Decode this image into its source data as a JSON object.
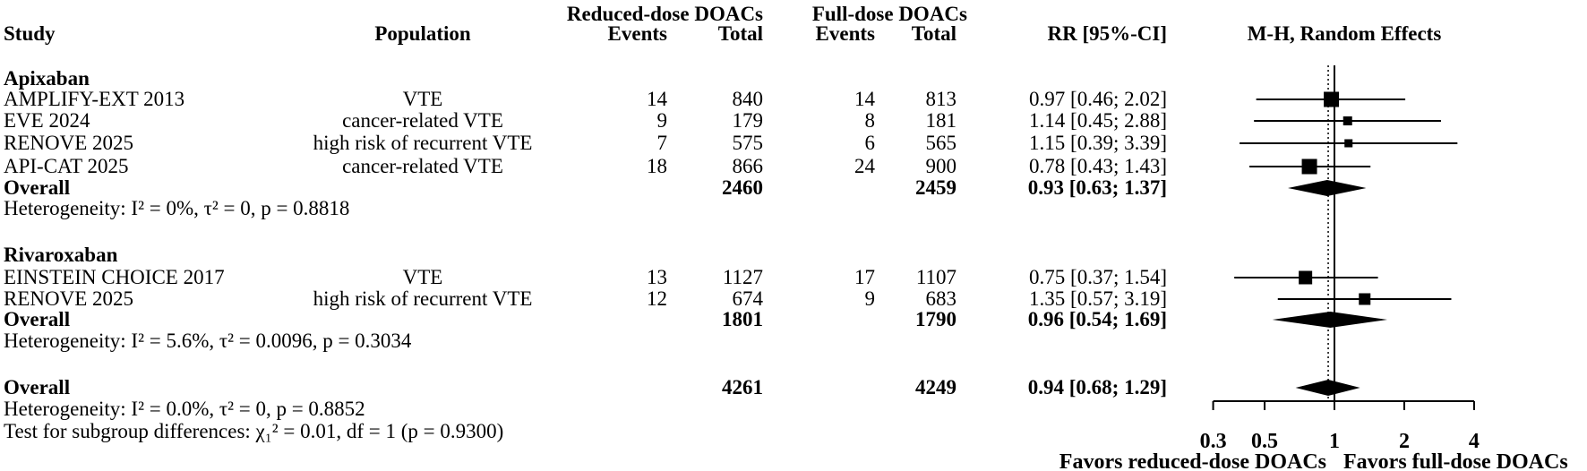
{
  "header": {
    "col_study": "Study",
    "col_population": "Population",
    "group_reduced": "Reduced-dose DOACs",
    "group_full": "Full-dose DOACs",
    "col_events_reduced": "Events",
    "col_total_reduced": "Total",
    "col_events_full": "Events",
    "col_total_full": "Total",
    "col_rr": "RR [95%-CI]",
    "col_plot": "M-H, Random Effects"
  },
  "chart_data": {
    "type": "forest",
    "x_scale": "log",
    "effect_measure": "RR",
    "model": "M-H, Random Effects",
    "ticks": [
      "0.3",
      "0.5",
      "1",
      "2",
      "4"
    ],
    "tick_values": [
      0.3,
      0.5,
      1,
      2,
      4
    ],
    "null_line": 1,
    "favors_left": "Favors reduced-dose DOACs",
    "favors_right": "Favors full-dose DOACs",
    "groups": [
      {
        "name": "Apixaban",
        "studies": [
          {
            "study": "AMPLIFY-EXT 2013",
            "population": "VTE",
            "reduced_events": "14",
            "reduced_total": "840",
            "full_events": "14",
            "full_total": "813",
            "rr_text": "0.97 [0.46; 2.02]",
            "rr": 0.97,
            "ci_low": 0.46,
            "ci_high": 2.02,
            "marker_size": 17
          },
          {
            "study": "EVE 2024",
            "population": "cancer-related VTE",
            "reduced_events": "9",
            "reduced_total": "179",
            "full_events": "8",
            "full_total": "181",
            "rr_text": "1.14 [0.45; 2.88]",
            "rr": 1.14,
            "ci_low": 0.45,
            "ci_high": 2.88,
            "marker_size": 10
          },
          {
            "study": "RENOVE 2025",
            "population": "high risk of recurrent VTE",
            "reduced_events": "7",
            "reduced_total": "575",
            "full_events": "6",
            "full_total": "565",
            "rr_text": "1.15 [0.39; 3.39]",
            "rr": 1.15,
            "ci_low": 0.39,
            "ci_high": 3.39,
            "marker_size": 9
          },
          {
            "study": "API-CAT 2025",
            "population": "cancer-related VTE",
            "reduced_events": "18",
            "reduced_total": "866",
            "full_events": "24",
            "full_total": "900",
            "rr_text": "0.78 [0.43; 1.43]",
            "rr": 0.78,
            "ci_low": 0.43,
            "ci_high": 1.43,
            "marker_size": 17
          }
        ],
        "overall": {
          "label": "Overall",
          "reduced_total": "2460",
          "full_total": "2459",
          "rr_text": "0.93 [0.63; 1.37]",
          "rr": 0.93,
          "ci_low": 0.63,
          "ci_high": 1.37
        },
        "heterogeneity": "Heterogeneity: I² = 0%, τ² = 0, p = 0.8818"
      },
      {
        "name": "Rivaroxaban",
        "studies": [
          {
            "study": "EINSTEIN CHOICE 2017",
            "population": "VTE",
            "reduced_events": "13",
            "reduced_total": "1127",
            "full_events": "17",
            "full_total": "1107",
            "rr_text": "0.75 [0.37; 1.54]",
            "rr": 0.75,
            "ci_low": 0.37,
            "ci_high": 1.54,
            "marker_size": 15
          },
          {
            "study": "RENOVE 2025",
            "population": "high risk of recurrent VTE",
            "reduced_events": "12",
            "reduced_total": "674",
            "full_events": "9",
            "full_total": "683",
            "rr_text": "1.35 [0.57; 3.19]",
            "rr": 1.35,
            "ci_low": 0.57,
            "ci_high": 3.19,
            "marker_size": 13
          }
        ],
        "overall": {
          "label": "Overall",
          "reduced_total": "1801",
          "full_total": "1790",
          "rr_text": "0.96 [0.54; 1.69]",
          "rr": 0.96,
          "ci_low": 0.54,
          "ci_high": 1.69
        },
        "heterogeneity": "Heterogeneity: I² = 5.6%, τ² = 0.0096, p = 0.3034"
      }
    ],
    "overall": {
      "label": "Overall",
      "reduced_total": "4261",
      "full_total": "4249",
      "rr_text": "0.94 [0.68; 1.29]",
      "rr": 0.94,
      "ci_low": 0.68,
      "ci_high": 1.29
    },
    "overall_heterogeneity": "Heterogeneity: I² = 0.0%, τ² = 0, p = 0.8852",
    "subgroup_test": "Test for subgroup differences: χ₁² = 0.01, df = 1 (p = 0.9300)"
  }
}
